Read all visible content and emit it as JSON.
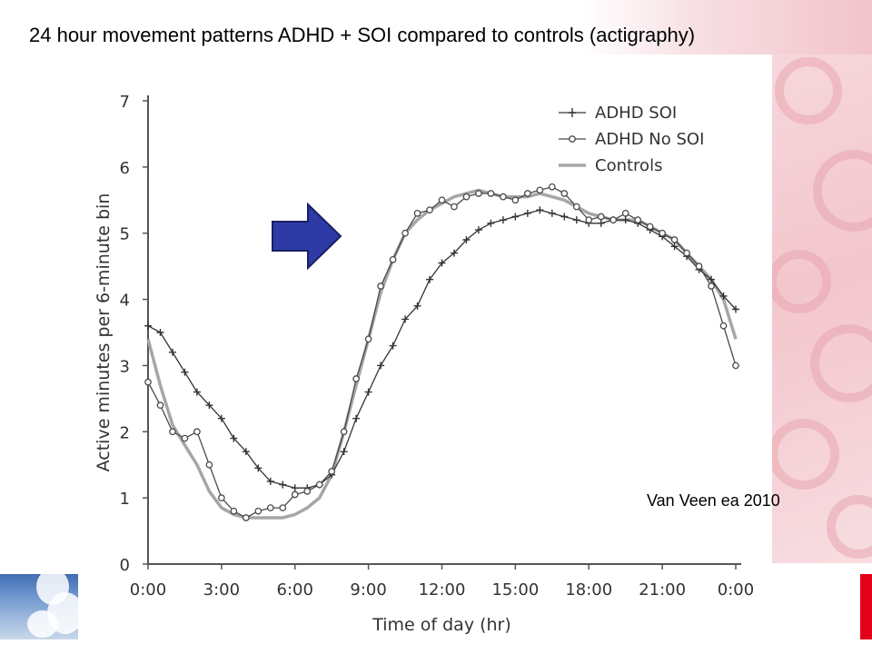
{
  "title": "24 hour movement patterns ADHD + SOI compared to controls (actigraphy)",
  "citation": "Van Veen ea 2010",
  "colors": {
    "axis": "#555555",
    "adhd_soi": "#333333",
    "adhd_no_soi": "#4a4a4a",
    "controls": "#a6a6a6",
    "arrow_fill": "#2e3aa5",
    "arrow_stroke": "#1a1f66",
    "brand_red": "#e2001a"
  },
  "decorations": {
    "arrow": "right-arrow-icon",
    "logo": "sky-logo"
  },
  "chart_data": {
    "type": "line",
    "xlabel": "Time of day (hr)",
    "ylabel": "Active minutes per 6-minute bin",
    "xlim": [
      0,
      24
    ],
    "ylim": [
      0,
      7
    ],
    "x_ticks": [
      0,
      3,
      6,
      9,
      12,
      15,
      18,
      21,
      24
    ],
    "x_tick_labels": [
      "0:00",
      "3:00",
      "6:00",
      "9:00",
      "12:00",
      "15:00",
      "18:00",
      "21:00",
      "0:00"
    ],
    "y_ticks": [
      0,
      1,
      2,
      3,
      4,
      5,
      6,
      7
    ],
    "y_tick_labels": [
      "0",
      "1",
      "2",
      "3",
      "4",
      "5",
      "6",
      "7"
    ],
    "grid": false,
    "legend_position": "top-right",
    "x": [
      0,
      0.5,
      1,
      1.5,
      2,
      2.5,
      3,
      3.5,
      4,
      4.5,
      5,
      5.5,
      6,
      6.5,
      7,
      7.5,
      8,
      8.5,
      9,
      9.5,
      10,
      10.5,
      11,
      11.5,
      12,
      12.5,
      13,
      13.5,
      14,
      14.5,
      15,
      15.5,
      16,
      16.5,
      17,
      17.5,
      18,
      18.5,
      19,
      19.5,
      20,
      20.5,
      21,
      21.5,
      22,
      22.5,
      23,
      23.5,
      24
    ],
    "series": [
      {
        "name": "ADHD SOI",
        "marker": "plus",
        "values": [
          3.6,
          3.5,
          3.2,
          2.9,
          2.6,
          2.4,
          2.2,
          1.9,
          1.7,
          1.45,
          1.25,
          1.2,
          1.15,
          1.15,
          1.2,
          1.35,
          1.7,
          2.2,
          2.6,
          3.0,
          3.3,
          3.7,
          3.9,
          4.3,
          4.55,
          4.7,
          4.9,
          5.05,
          5.15,
          5.2,
          5.25,
          5.3,
          5.35,
          5.3,
          5.25,
          5.2,
          5.15,
          5.15,
          5.2,
          5.2,
          5.15,
          5.05,
          4.95,
          4.8,
          4.65,
          4.45,
          4.3,
          4.05,
          3.85
        ]
      },
      {
        "name": "ADHD No SOI",
        "marker": "circle",
        "values": [
          2.75,
          2.4,
          2.0,
          1.9,
          2.0,
          1.5,
          1.0,
          0.8,
          0.7,
          0.8,
          0.85,
          0.85,
          1.05,
          1.1,
          1.2,
          1.4,
          2.0,
          2.8,
          3.4,
          4.2,
          4.6,
          5.0,
          5.3,
          5.35,
          5.5,
          5.4,
          5.55,
          5.6,
          5.6,
          5.55,
          5.5,
          5.6,
          5.65,
          5.7,
          5.6,
          5.4,
          5.2,
          5.25,
          5.2,
          5.3,
          5.2,
          5.1,
          5.0,
          4.9,
          4.7,
          4.5,
          4.2,
          3.6,
          3.0
        ]
      },
      {
        "name": "Controls",
        "marker": "none",
        "values": [
          3.4,
          2.7,
          2.1,
          1.8,
          1.5,
          1.1,
          0.85,
          0.75,
          0.7,
          0.7,
          0.7,
          0.7,
          0.75,
          0.85,
          1.0,
          1.35,
          2.0,
          2.7,
          3.4,
          4.1,
          4.6,
          5.0,
          5.2,
          5.35,
          5.45,
          5.55,
          5.6,
          5.65,
          5.6,
          5.55,
          5.55,
          5.55,
          5.6,
          5.55,
          5.5,
          5.4,
          5.3,
          5.25,
          5.2,
          5.2,
          5.2,
          5.1,
          5.0,
          4.9,
          4.7,
          4.5,
          4.3,
          4.0,
          3.4
        ]
      }
    ]
  }
}
